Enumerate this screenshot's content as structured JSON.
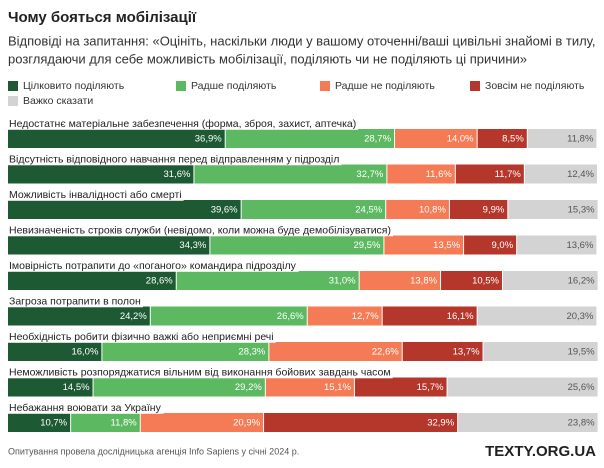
{
  "chart_data": {
    "type": "stacked-bar-horizontal",
    "title": "Чому бояться мобілізації",
    "subtitle": [
      "Відповіді на запитання: «Оцініть, наскільки люди у вашому оточенні/ваші цивільні знайомі в тилу,",
      "розглядаючи для себе можливість мобілізації, поділяють чи не поділяють ці причини»"
    ],
    "source": "Опитування провела дослідницька агенція Info Sapiens у січні 2024 р.",
    "logo": "TEXTY.ORG.UA",
    "xlim": [
      0,
      100
    ],
    "categories": [
      "Недостатнє матеріальне забезпечення (форма, зброя, захист, аптечка)",
      "Відсутність відповідного навчання перед відправленням у підрозділ",
      "Можливість інвалідності або смерті",
      "Невизначеність строків служби (невідомо, коли можна буде демобілізуватися)",
      "Імовірність потрапити до «поганого» командира підрозділу",
      "Загроза потрапити в полон",
      "Необхідність робити фізично важкі або неприємні речі",
      "Неможливість розпоряджатися вільним від виконання бойових завдань часом",
      "Небажання воювати за Україну"
    ],
    "series": [
      {
        "name": "Цілковито поділяють",
        "color": "#1d5a33",
        "label_color": "#ffffff",
        "values": [
          36.9,
          31.6,
          39.6,
          34.3,
          28.6,
          24.2,
          16.0,
          14.5,
          10.7
        ],
        "value_labels": [
          "36,9%",
          "31,6%",
          "39,6%",
          "34,3%",
          "28,6%",
          "24,2%",
          "16,0%",
          "14,5%",
          "10,7%"
        ]
      },
      {
        "name": "Радше поділяють",
        "color": "#5cb961",
        "label_color": "#ffffff",
        "values": [
          28.7,
          32.7,
          24.5,
          29.5,
          31.0,
          26.6,
          28.3,
          29.2,
          11.8
        ],
        "value_labels": [
          "28,7%",
          "32,7%",
          "24,5%",
          "29,5%",
          "31,0%",
          "26,6%",
          "28,3%",
          "29,2%",
          "11,8%"
        ]
      },
      {
        "name": "Радше не поділяють",
        "color": "#f47b55",
        "label_color": "#ffffff",
        "values": [
          14.0,
          11.6,
          10.8,
          13.5,
          13.8,
          12.7,
          22.6,
          15.1,
          20.9
        ],
        "value_labels": [
          "14,0%",
          "11,6%",
          "10,8%",
          "13,5%",
          "13,8%",
          "12,7%",
          "22,6%",
          "15,1%",
          "20,9%"
        ]
      },
      {
        "name": "Зовсім не поділяють",
        "color": "#b5372b",
        "label_color": "#ffffff",
        "values": [
          8.5,
          11.7,
          9.9,
          9.0,
          10.5,
          16.1,
          13.7,
          15.7,
          32.9
        ],
        "value_labels": [
          "8,5%",
          "11,7%",
          "9,9%",
          "9,0%",
          "10,5%",
          "16,1%",
          "13,7%",
          "15,7%",
          "32,9%"
        ]
      },
      {
        "name": "Важко сказати",
        "color": "#d3d3d3",
        "label_color": "#555555",
        "values": [
          11.8,
          12.4,
          15.3,
          13.6,
          16.2,
          20.3,
          19.5,
          25.6,
          23.8
        ],
        "value_labels": [
          "11,8%",
          "12,4%",
          "15,3%",
          "13,6%",
          "16,2%",
          "20,3%",
          "19,5%",
          "25,6%",
          "23,8%"
        ]
      }
    ]
  }
}
